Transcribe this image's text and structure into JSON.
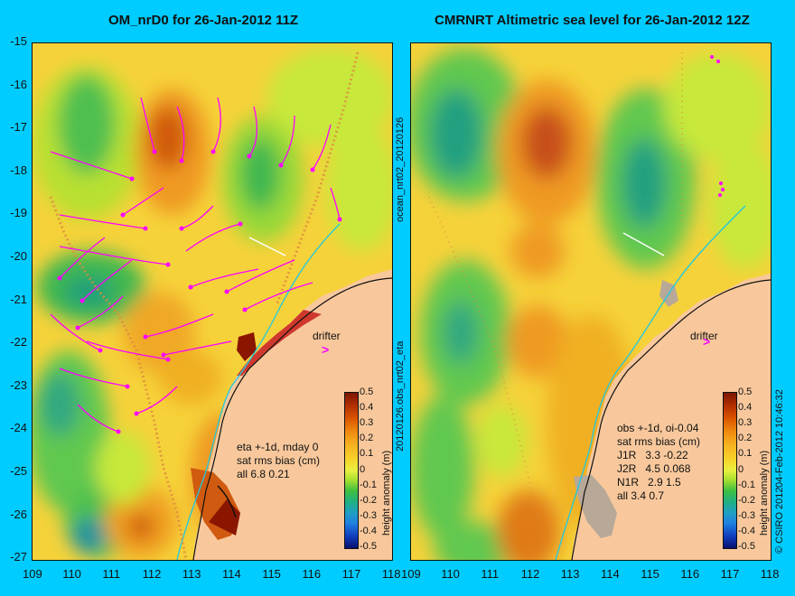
{
  "left_panel": {
    "title": "OM_nrD0 for 26-Jan-2012 11Z",
    "info_lines": [
      "eta +-1d, mday 0",
      "sat rms bias (cm)",
      "all 6.8 0.21"
    ],
    "drifter_label": "drifter",
    "drifter_arrow": ">"
  },
  "right_panel": {
    "title": "CMRNRT Altimetric sea level  for 26-Jan-2012 12Z",
    "info_lines": [
      "obs +-1d, oi-0.04",
      "sat rms bias (cm)",
      "J1R   3.3 -0.22",
      "J2R   4.5 0.068",
      "N1R   2.9 1.5",
      "all 3.4 0.7"
    ],
    "drifter_label": "drifter",
    "drifter_arrow": ">"
  },
  "middle_vertical_label": "20120126.obs_nrt02_eta",
  "top_vertical_label": "ocean_nrt02_20120126",
  "colorbar_label": "height anomaly (m)",
  "credit": "© CSIRO 2012",
  "timestamp": "04-Feb-2012 10:46:32",
  "y_ticks": [
    "-15",
    "-16",
    "-17",
    "-18",
    "-19",
    "-20",
    "-21",
    "-22",
    "-23",
    "-24",
    "-25",
    "-26",
    "-27"
  ],
  "x_ticks": [
    "109",
    "110",
    "111",
    "112",
    "113",
    "114",
    "115",
    "116",
    "117",
    "118"
  ],
  "colorbar_ticks": [
    "0.5",
    "0.4",
    "0.3",
    "0.2",
    "0.1",
    "0",
    "-0.1",
    "-0.2",
    "-0.3",
    "-0.4",
    "-0.5"
  ],
  "colors": {
    "background": "#00ccff",
    "land": "#f8c89c",
    "vectors": "#ff00ff"
  }
}
